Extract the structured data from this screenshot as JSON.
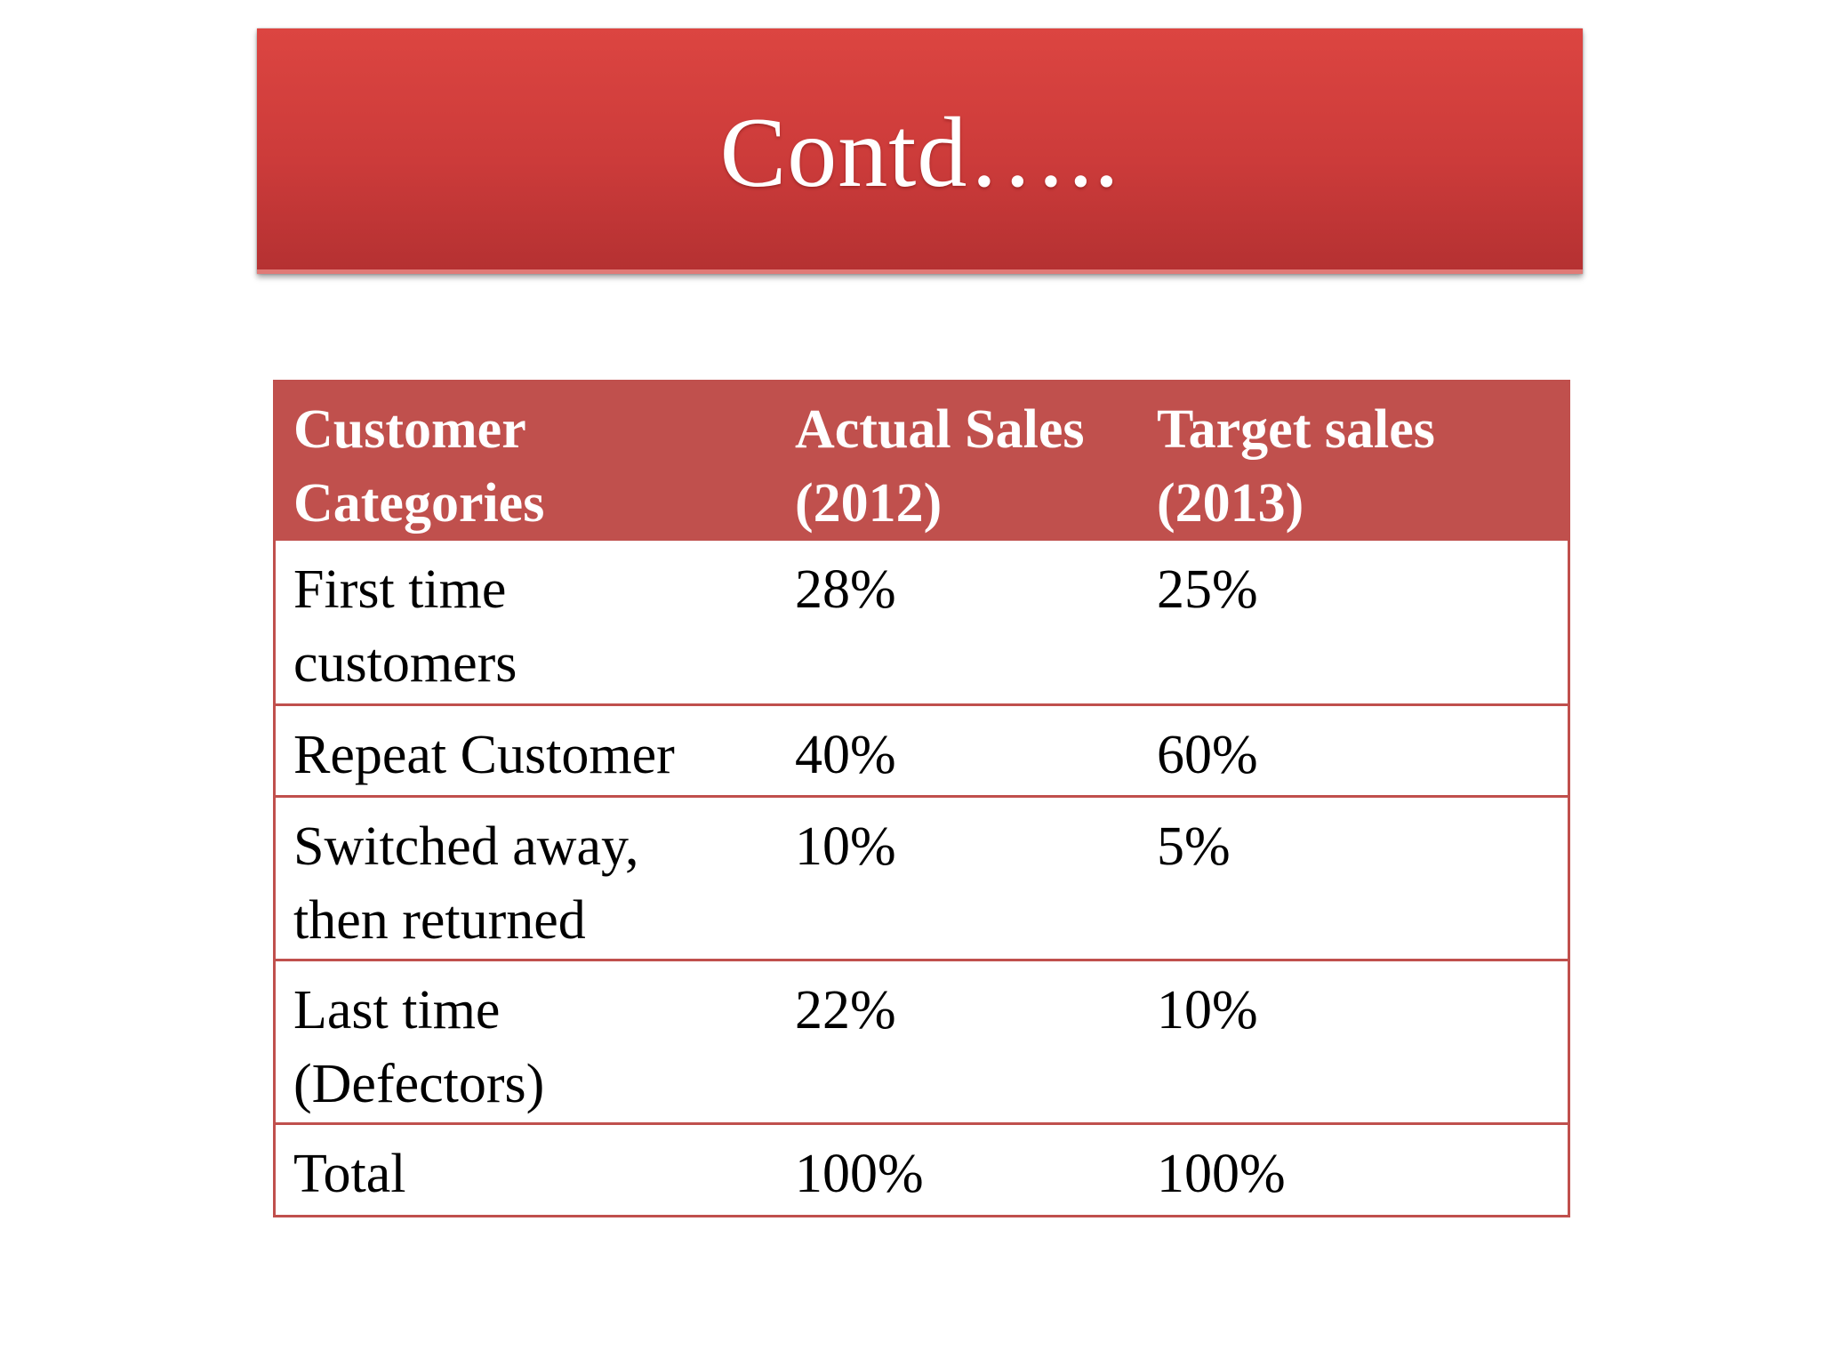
{
  "slide": {
    "title": "Contd….."
  },
  "table": {
    "headers": [
      [
        "Customer",
        "Categories"
      ],
      [
        "Actual Sales",
        "(2012)"
      ],
      [
        "Target sales",
        "(2013)"
      ]
    ],
    "rows": [
      {
        "category": [
          "First time",
          "customers"
        ],
        "actual": "28%",
        "target": "25%"
      },
      {
        "category": [
          "Repeat Customer"
        ],
        "actual": "40%",
        "target": "60%"
      },
      {
        "category": [
          "Switched away,",
          "then returned"
        ],
        "actual": "10%",
        "target": "5%"
      },
      {
        "category": [
          "Last time",
          "(Defectors)"
        ],
        "actual": "22%",
        "target": "10%"
      },
      {
        "category": [
          "Total"
        ],
        "actual": "100%",
        "target": "100%"
      }
    ]
  },
  "colors": {
    "title_red": "#d43f3d",
    "table_header": "#c0504d",
    "table_border": "#c0504d"
  }
}
